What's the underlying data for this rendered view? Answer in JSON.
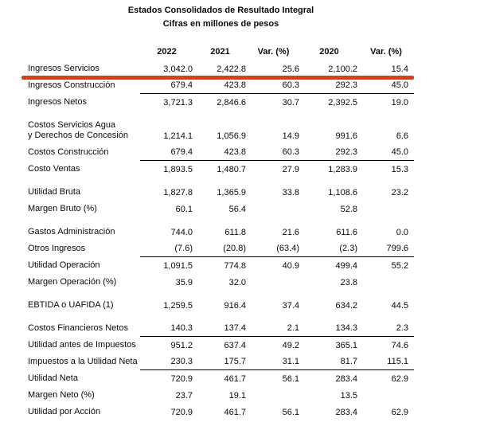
{
  "title": "Estados Consolidados de Resultado Integral",
  "subtitle": "Cifras en millones de pesos",
  "accent_color": "#e83a0e",
  "table": {
    "columns": [
      "",
      "2022",
      "2021",
      "Var. (%)",
      "2020",
      "Var. (%)"
    ],
    "rows": [
      {
        "label": "Ingresos Servicios",
        "values": [
          "3,042.0",
          "2,422.8",
          "25.6",
          "2,100.2",
          "15.4"
        ],
        "red_highlight": true
      },
      {
        "label": "Ingresos Construcción",
        "values": [
          "679.4",
          "423.8",
          "60.3",
          "292.3",
          "45.0"
        ],
        "underline": true
      },
      {
        "label": "Ingresos Netos",
        "values": [
          "3,721.3",
          "2,846.6",
          "30.7",
          "2,392.5",
          "19.0"
        ]
      },
      {
        "label": "Costos Servicios Agua\ny Derechos de Concesión",
        "values": [
          "1,214.1",
          "1,056.9",
          "14.9",
          "991.6",
          "6.6"
        ],
        "gap_before": true,
        "tall": true
      },
      {
        "label": "Costos Construcción",
        "values": [
          "679.4",
          "423.8",
          "60.3",
          "292.3",
          "45.0"
        ],
        "underline": true
      },
      {
        "label": "Costo Ventas",
        "values": [
          "1,893.5",
          "1,480.7",
          "27.9",
          "1,283.9",
          "15.3"
        ]
      },
      {
        "label": "Utilidad Bruta",
        "values": [
          "1,827.8",
          "1,365.9",
          "33.8",
          "1,108.6",
          "23.2"
        ],
        "gap_before": true
      },
      {
        "label": "Margen Bruto (%)",
        "values": [
          "60.1",
          "56.4",
          "",
          "52.8",
          ""
        ]
      },
      {
        "label": "Gastos Administración",
        "values": [
          "744.0",
          "611.8",
          "21.6",
          "611.6",
          "0.0"
        ],
        "gap_before": true
      },
      {
        "label": "Otros Ingresos",
        "values": [
          "(7.6)",
          "(20.8)",
          "(63.4)",
          "(2.3)",
          "799.6"
        ],
        "underline": true
      },
      {
        "label": "Utilidad Operación",
        "values": [
          "1,091.5",
          "774.8",
          "40.9",
          "499.4",
          "55.2"
        ]
      },
      {
        "label": "Margen Operación (%)",
        "values": [
          "35.9",
          "32.0",
          "",
          "23.8",
          ""
        ]
      },
      {
        "label": "EBTIDA o UAFIDA (1)",
        "values": [
          "1,259.5",
          "916.4",
          "37.4",
          "634.2",
          "44.5"
        ],
        "gap_before": true
      },
      {
        "label": "Costos Financieros Netos",
        "values": [
          "140.3",
          "137.4",
          "2.1",
          "134.3",
          "2.3"
        ],
        "underline": true,
        "gap_before": true
      },
      {
        "label": "Utilidad antes de Impuestos",
        "values": [
          "951.2",
          "637.4",
          "49.2",
          "365.1",
          "74.6"
        ]
      },
      {
        "label": "Impuestos a la Utilidad Neta",
        "values": [
          "230.3",
          "175.7",
          "31.1",
          "81.7",
          "115.1"
        ],
        "underline": true
      },
      {
        "label": "Utilidad Neta",
        "values": [
          "720.9",
          "461.7",
          "56.1",
          "283.4",
          "62.9"
        ]
      },
      {
        "label": "Margen Neto (%)",
        "values": [
          "23.7",
          "19.1",
          "",
          "13.5",
          ""
        ]
      },
      {
        "label": "Utilidad por Acción",
        "values": [
          "720.9",
          "461.7",
          "56.1",
          "283.4",
          "62.9"
        ]
      }
    ]
  }
}
